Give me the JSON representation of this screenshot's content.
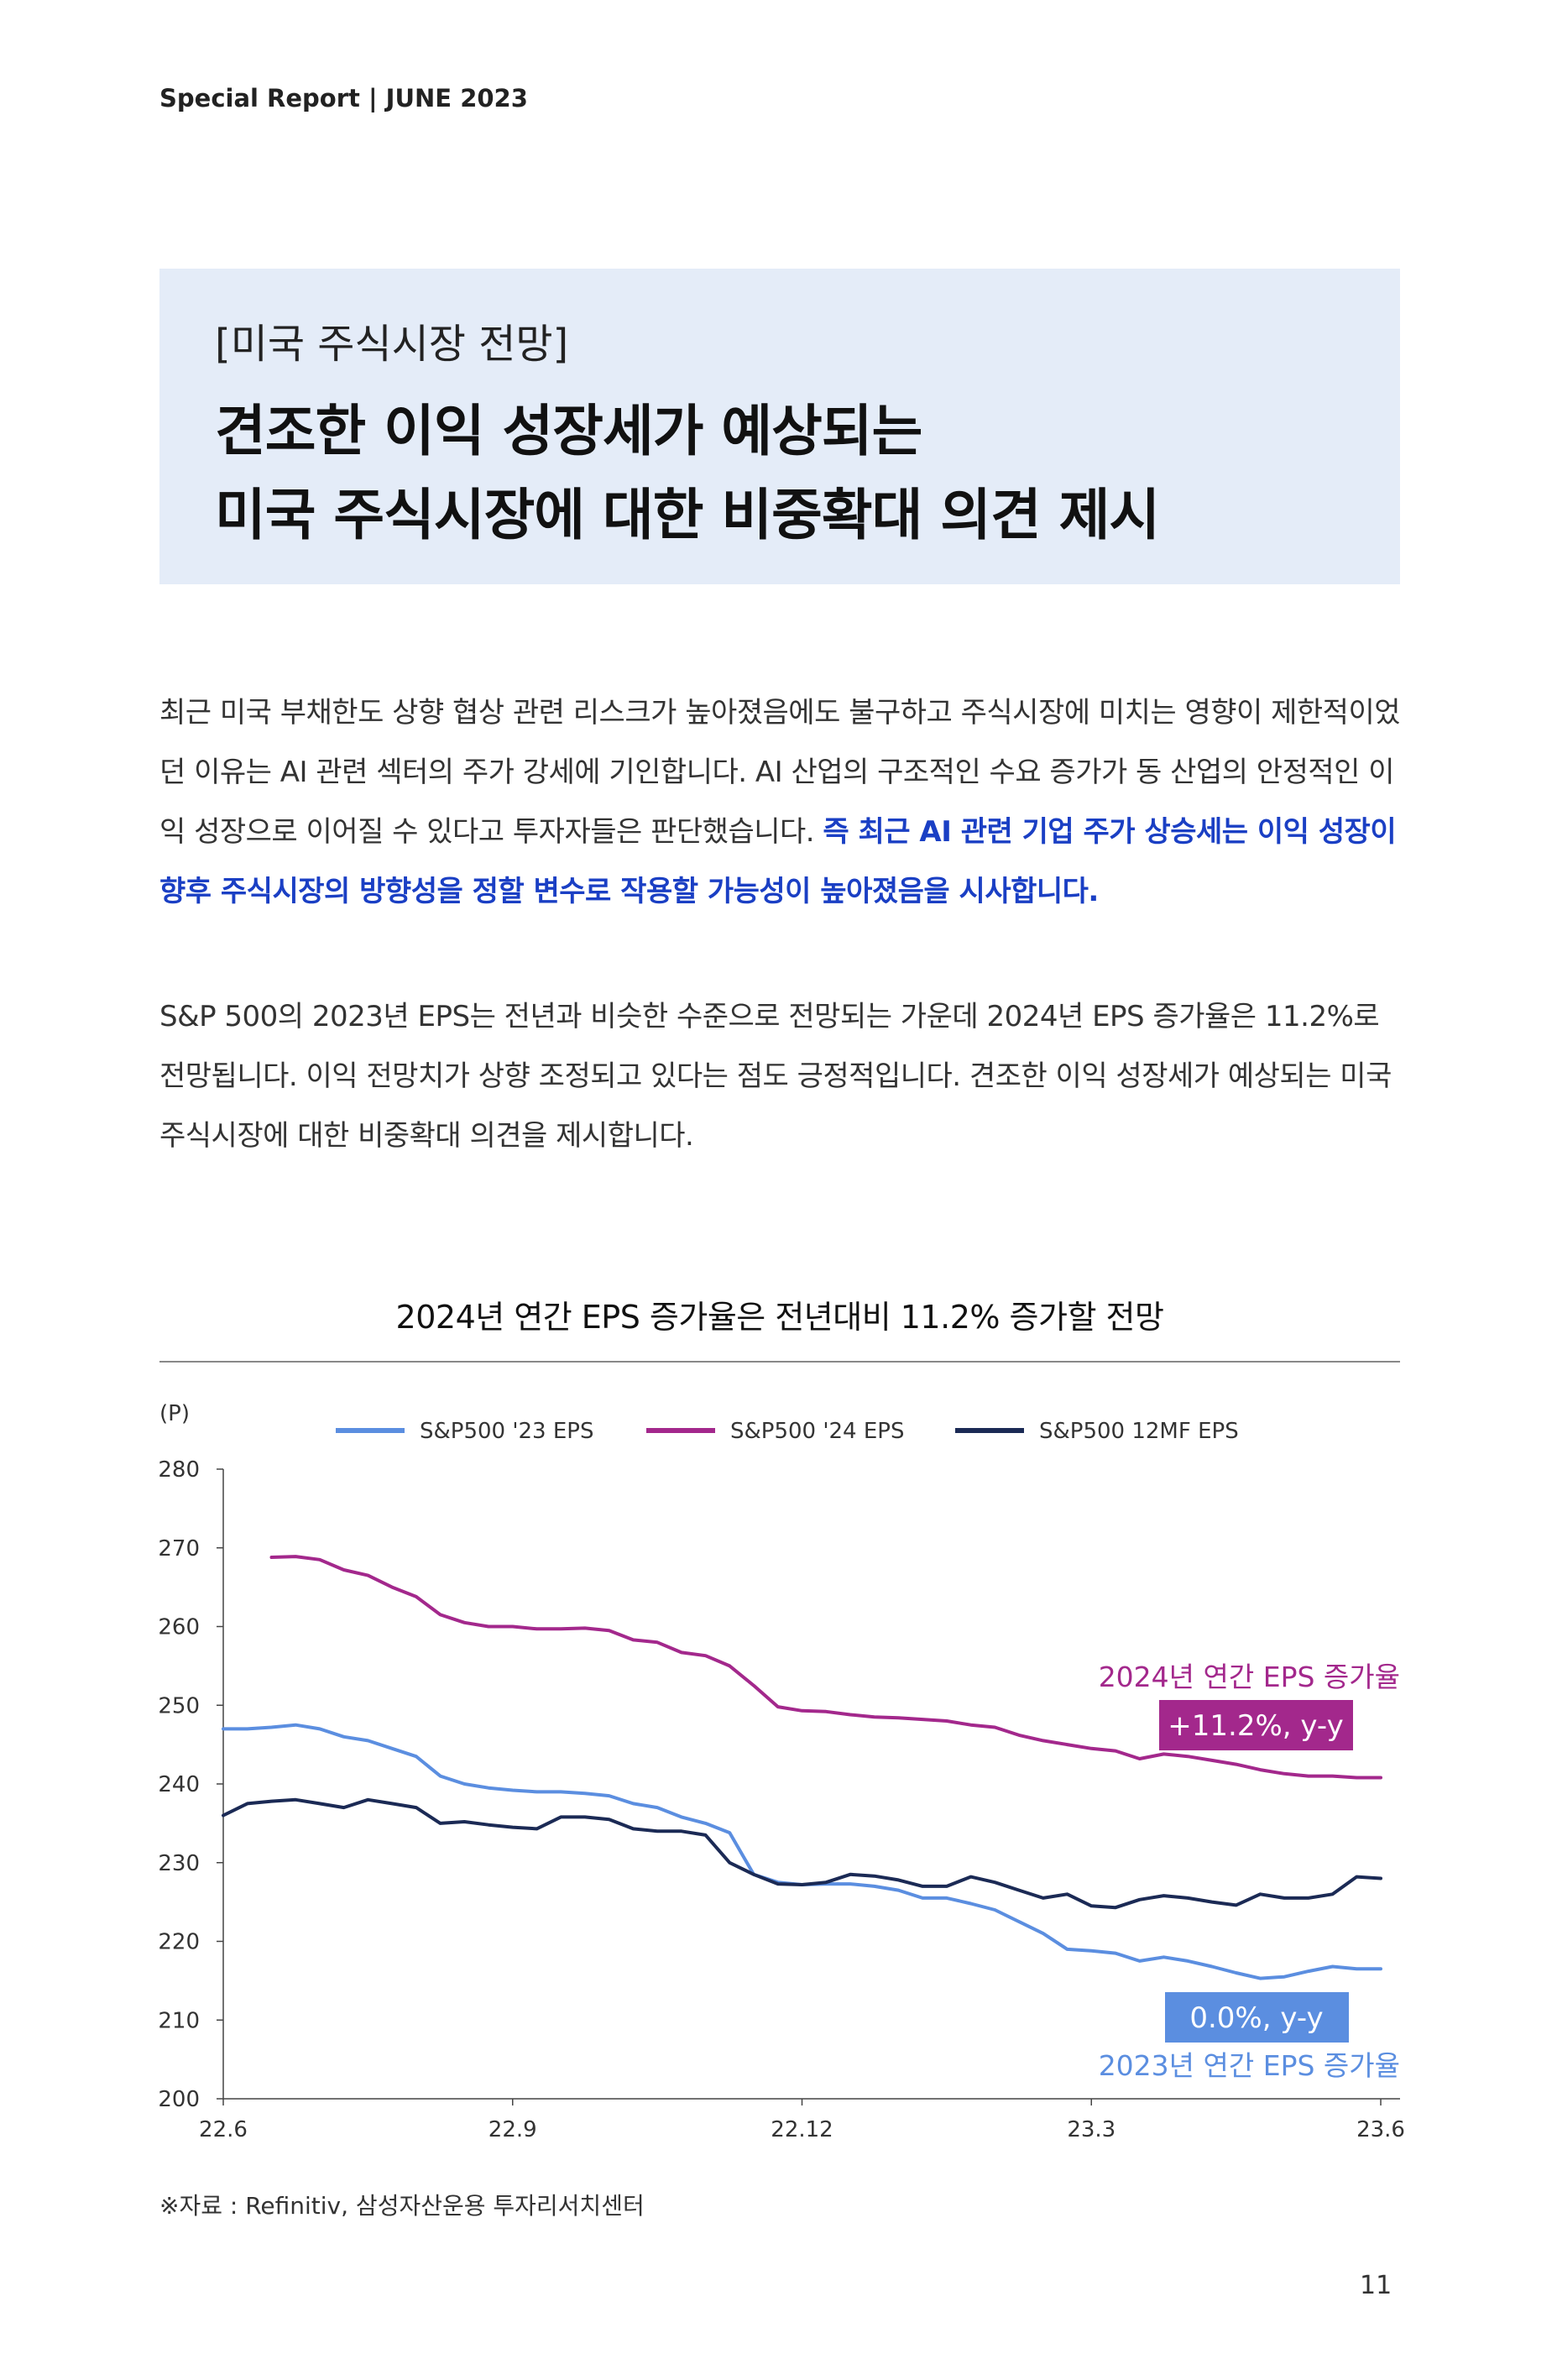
{
  "header": {
    "text": "Special Report | JUNE 2023"
  },
  "title_box": {
    "subtitle": "[미국 주식시장 전망]",
    "line1": "견조한 이익 성장세가 예상되는",
    "line2": "미국 주식시장에 대한 비중확대 의견 제시"
  },
  "body": {
    "p1_plain": "최근 미국 부채한도 상향 협상 관련 리스크가 높아졌음에도 불구하고 주식시장에 미치는 영향이 제한적이었던 이유는 AI 관련 섹터의 주가 강세에 기인합니다. AI 산업의 구조적인 수요 증가가 동 산업의 안정적인 이익 성장으로 이어질 수 있다고 투자자들은 판단했습니다. ",
    "p1_highlight": "즉 최근 AI 관련 기업 주가 상승세는 이익 성장이 향후 주식시장의 방향성을 정할 변수로 작용할 가능성이 높아졌음을 시사합니다.",
    "p2": "S&P 500의 2023년 EPS는 전년과 비슷한 수준으로 전망되는 가운데 2024년 EPS 증가율은 11.2%로 전망됩니다. 이익 전망치가 상향 조정되고 있다는 점도 긍정적입니다. 견조한 이익 성장세가 예상되는 미국 주식시장에 대한 비중확대 의견을 제시합니다."
  },
  "chart_title": "2024년 연간 EPS 증가율은 전년대비 11.2% 증가할 전망",
  "source": "※자료 : Refinitiv, 삼성자산운용 투자리서치센터",
  "page_number": "11",
  "chart_data": {
    "type": "line",
    "unit_label": "(P)",
    "ylim": [
      200,
      280
    ],
    "yticks": [
      200,
      210,
      220,
      230,
      240,
      250,
      260,
      270,
      280
    ],
    "xlim": [
      0,
      12.2
    ],
    "xticks": [
      {
        "label": "22.6",
        "x": 0
      },
      {
        "label": "22.9",
        "x": 3
      },
      {
        "label": "22.12",
        "x": 6
      },
      {
        "label": "23.3",
        "x": 9
      },
      {
        "label": "23.6",
        "x": 12
      }
    ],
    "legend_position": "top",
    "series": [
      {
        "name": "S&P500 '23 EPS",
        "color": "#5b8ee0",
        "x": [
          0,
          0.25,
          0.5,
          0.75,
          1.0,
          1.25,
          1.5,
          1.75,
          2.0,
          2.25,
          2.5,
          2.75,
          3.0,
          3.25,
          3.5,
          3.75,
          4.0,
          4.25,
          4.5,
          4.75,
          5.0,
          5.25,
          5.5,
          5.75,
          6.0,
          6.25,
          6.5,
          6.75,
          7.0,
          7.25,
          7.5,
          7.75,
          8.0,
          8.25,
          8.5,
          8.75,
          9.0,
          9.25,
          9.5,
          9.75,
          10.0,
          10.25,
          10.5,
          10.75,
          11.0,
          11.25,
          11.5,
          11.75,
          12.0
        ],
        "values": [
          247.0,
          247.0,
          247.2,
          247.5,
          247.0,
          246.0,
          245.5,
          244.5,
          243.5,
          241.0,
          240.0,
          239.5,
          239.2,
          239.0,
          239.0,
          238.8,
          238.5,
          237.5,
          237.0,
          235.8,
          235.0,
          233.8,
          228.5,
          227.5,
          227.2,
          227.3,
          227.3,
          227.0,
          226.5,
          225.5,
          225.5,
          224.8,
          224.0,
          222.5,
          221.0,
          219.0,
          218.8,
          218.5,
          217.5,
          218.0,
          217.5,
          216.8,
          216.0,
          215.3,
          215.5,
          216.2,
          216.8,
          216.5,
          216.5
        ]
      },
      {
        "name": "S&P500 '24 EPS",
        "color": "#a3288c",
        "x": [
          0.5,
          0.75,
          1.0,
          1.25,
          1.5,
          1.75,
          2.0,
          2.25,
          2.5,
          2.75,
          3.0,
          3.25,
          3.5,
          3.75,
          4.0,
          4.25,
          4.5,
          4.75,
          5.0,
          5.25,
          5.5,
          5.75,
          6.0,
          6.25,
          6.5,
          6.75,
          7.0,
          7.25,
          7.5,
          7.75,
          8.0,
          8.25,
          8.5,
          8.75,
          9.0,
          9.25,
          9.5,
          9.75,
          10.0,
          10.25,
          10.5,
          10.75,
          11.0,
          11.25,
          11.5,
          11.75,
          12.0
        ],
        "values": [
          268.8,
          268.9,
          268.5,
          267.2,
          266.5,
          265.0,
          263.8,
          261.5,
          260.5,
          260.0,
          260.0,
          259.7,
          259.7,
          259.8,
          259.5,
          258.3,
          258.0,
          256.7,
          256.3,
          255.0,
          252.5,
          249.8,
          249.3,
          249.2,
          248.8,
          248.5,
          248.4,
          248.2,
          248.0,
          247.5,
          247.2,
          246.2,
          245.5,
          245.0,
          244.5,
          244.2,
          243.2,
          243.8,
          243.5,
          243.0,
          242.5,
          241.8,
          241.3,
          241.0,
          241.0,
          240.8,
          240.8
        ]
      },
      {
        "name": "S&P500 12MF EPS",
        "color": "#1b2a55",
        "x": [
          0,
          0.25,
          0.5,
          0.75,
          1.0,
          1.25,
          1.5,
          1.75,
          2.0,
          2.25,
          2.5,
          2.75,
          3.0,
          3.25,
          3.5,
          3.75,
          4.0,
          4.25,
          4.5,
          4.75,
          5.0,
          5.25,
          5.5,
          5.75,
          6.0,
          6.25,
          6.5,
          6.75,
          7.0,
          7.25,
          7.5,
          7.75,
          8.0,
          8.25,
          8.5,
          8.75,
          9.0,
          9.25,
          9.5,
          9.75,
          10.0,
          10.25,
          10.5,
          10.75,
          11.0,
          11.25,
          11.5,
          11.75,
          12.0
        ],
        "values": [
          236.0,
          237.5,
          237.8,
          238.0,
          237.5,
          237.0,
          238.0,
          237.5,
          237.0,
          235.0,
          235.2,
          234.8,
          234.5,
          234.3,
          235.8,
          235.8,
          235.5,
          234.3,
          234.0,
          234.0,
          233.5,
          230.0,
          228.5,
          227.3,
          227.2,
          227.5,
          228.5,
          228.3,
          227.8,
          227.0,
          227.0,
          228.2,
          227.5,
          226.5,
          225.5,
          226.0,
          224.5,
          224.3,
          225.3,
          225.8,
          225.5,
          225.0,
          224.6,
          226.0,
          225.5,
          225.5,
          226.0,
          228.2,
          228.0
        ]
      }
    ],
    "annotations": [
      {
        "label": "2024년 연간 EPS 증가율",
        "badge": "+11.2%, y-y",
        "color": "#a3288c"
      },
      {
        "label": "2023년 연간 EPS 증가율",
        "badge": "0.0%, y-y",
        "color": "#5b8ee0"
      }
    ]
  }
}
